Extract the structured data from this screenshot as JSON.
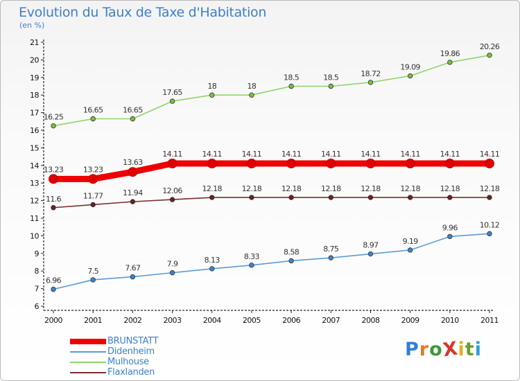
{
  "header": {
    "title": "Evolution du Taux de Taxe d'Habitation",
    "unit": "(en %)"
  },
  "logo": {
    "text": "ProXiti",
    "colors": [
      "#2f7fd8",
      "#e07b2a",
      "#3a9a3a",
      "#d23a2a",
      "#e0b020",
      "#6a9f2a",
      "#2f9fd8"
    ]
  },
  "chart_data": {
    "type": "line",
    "title": "Evolution du Taux de Taxe d'Habitation",
    "ylabel": "(en %)",
    "xlabel": "",
    "x": [
      "2000",
      "2001",
      "2002",
      "2003",
      "2004",
      "2005",
      "2006",
      "2007",
      "2008",
      "2009",
      "2010",
      "2011"
    ],
    "ylim": [
      6,
      21
    ],
    "yticks": [
      6,
      7,
      8,
      9,
      10,
      11,
      12,
      13,
      14,
      15,
      16,
      17,
      18,
      19,
      20,
      21
    ],
    "grid": false,
    "legend_position": "bottom-left",
    "series": [
      {
        "name": "Mulhouse",
        "color": "#8fd36a",
        "marker": "#76c043",
        "width": "normal",
        "values": [
          16.25,
          16.65,
          16.65,
          17.65,
          18,
          18,
          18.5,
          18.5,
          18.72,
          19.09,
          19.86,
          20.26
        ],
        "labels": [
          "16.25",
          "16.65",
          "16.65",
          "17.65",
          "18",
          "18",
          "18.5",
          "18.5",
          "18.72",
          "19.09",
          "19.86",
          "20.26"
        ]
      },
      {
        "name": "BRUNSTATT",
        "color": "#ee0000",
        "marker": "#e00000",
        "width": "thick",
        "values": [
          13.23,
          13.23,
          13.63,
          14.11,
          14.11,
          14.11,
          14.11,
          14.11,
          14.11,
          14.11,
          14.11,
          14.11
        ],
        "labels": [
          "13.23",
          "13.23",
          "13.63",
          "14.11",
          "14.11",
          "14.11",
          "14.11",
          "14.11",
          "14.11",
          "14.11",
          "14.11",
          "14.11"
        ]
      },
      {
        "name": "Flaxlanden",
        "color": "#7a2e2e",
        "marker": "#6a2020",
        "width": "normal",
        "values": [
          11.6,
          11.77,
          11.94,
          12.06,
          12.18,
          12.18,
          12.18,
          12.18,
          12.18,
          12.18,
          12.18,
          12.18
        ],
        "labels": [
          "11.6",
          "11.77",
          "11.94",
          "12.06",
          "12.18",
          "12.18",
          "12.18",
          "12.18",
          "12.18",
          "12.18",
          "12.18",
          "12.18"
        ]
      },
      {
        "name": "Didenheim",
        "color": "#5b9bd5",
        "marker": "#3f83c9",
        "width": "normal",
        "values": [
          6.96,
          7.5,
          7.67,
          7.9,
          8.13,
          8.33,
          8.58,
          8.75,
          8.97,
          9.19,
          9.96,
          10.12
        ],
        "labels": [
          "6.96",
          "7.5",
          "7.67",
          "7.9",
          "8.13",
          "8.33",
          "8.58",
          "8.75",
          "8.97",
          "9.19",
          "9.96",
          "10.12"
        ]
      }
    ],
    "legend_order": [
      "BRUNSTATT",
      "Didenheim",
      "Mulhouse",
      "Flaxlanden"
    ]
  }
}
